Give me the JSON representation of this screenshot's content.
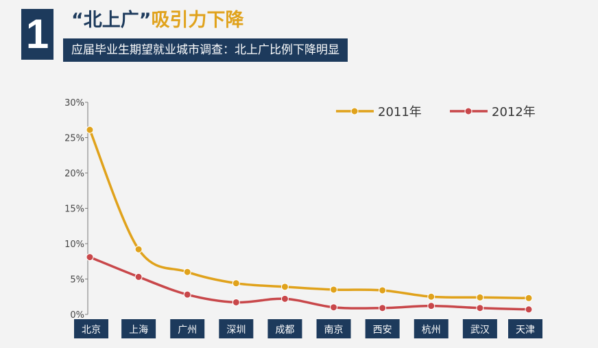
{
  "header": {
    "number": "1",
    "title_quoted": "“北上广”",
    "title_rest": "吸引力下降",
    "subtitle": "应届毕业生期望就业城市调查：北上广比例下降明显"
  },
  "chart_data": {
    "type": "line",
    "categories": [
      "北京",
      "上海",
      "广州",
      "深圳",
      "成都",
      "南京",
      "西安",
      "杭州",
      "武汉",
      "天津"
    ],
    "series": [
      {
        "name": "2011年",
        "color": "#e0a21b",
        "values": [
          26.1,
          9.2,
          6.0,
          4.4,
          3.9,
          3.5,
          3.4,
          2.5,
          2.4,
          2.3
        ]
      },
      {
        "name": "2012年",
        "color": "#c8474a",
        "values": [
          8.1,
          5.3,
          2.8,
          1.7,
          2.2,
          1.0,
          0.9,
          1.2,
          0.9,
          0.7
        ]
      }
    ],
    "ylim": [
      0,
      30
    ],
    "yticks": [
      0,
      5,
      10,
      15,
      20,
      25,
      30
    ],
    "ytick_labels": [
      "0%",
      "5%",
      "10%",
      "15%",
      "20%",
      "25%",
      "30%"
    ],
    "legend_position": "top-right",
    "grid": false
  }
}
